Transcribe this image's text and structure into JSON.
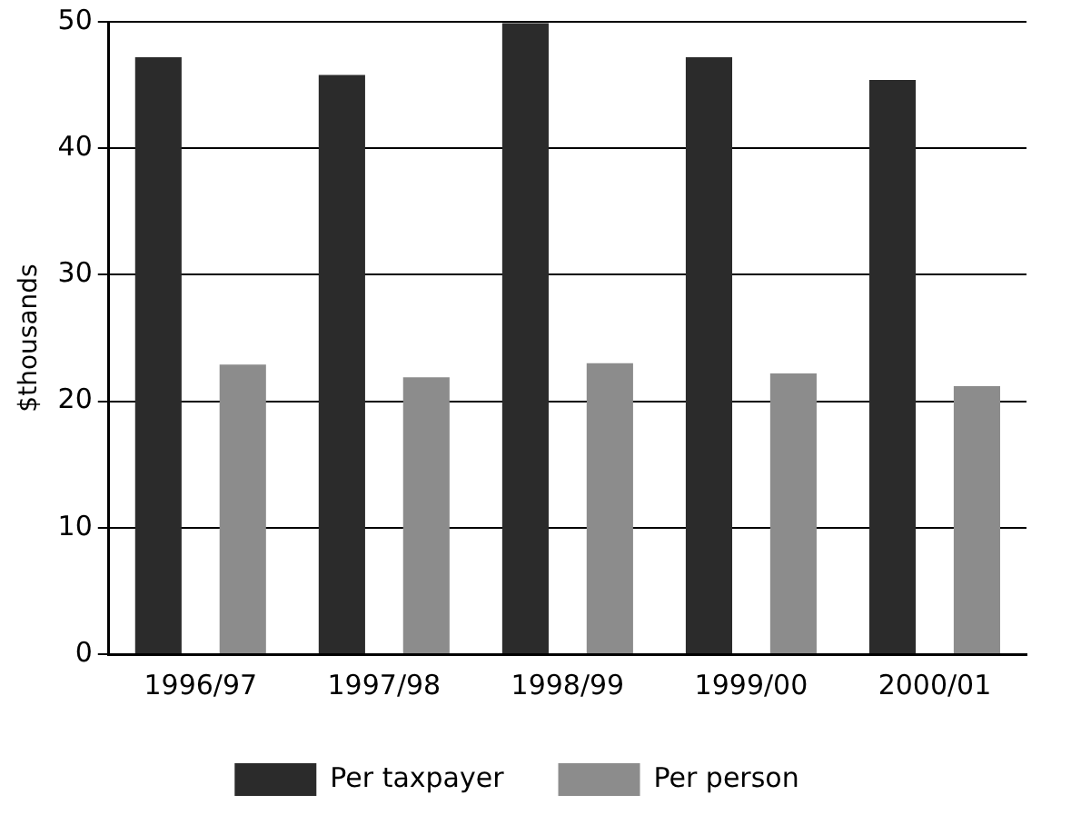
{
  "chart_data": {
    "type": "bar",
    "ylabel": "$thousands",
    "categories": [
      "1996/97",
      "1997/98",
      "1998/99",
      "1999/00",
      "2000/01"
    ],
    "series": [
      {
        "name": "Per taxpayer",
        "color": "#2b2b2b",
        "values": [
          47.2,
          45.8,
          49.9,
          47.2,
          45.4
        ]
      },
      {
        "name": "Per person",
        "color": "#8c8c8c",
        "values": [
          22.9,
          21.9,
          23.0,
          22.2,
          21.2
        ]
      }
    ],
    "ylim": [
      0,
      50
    ],
    "yticks": [
      0,
      10,
      20,
      30,
      40,
      50
    ],
    "grid": "y",
    "legend": "bottom"
  }
}
